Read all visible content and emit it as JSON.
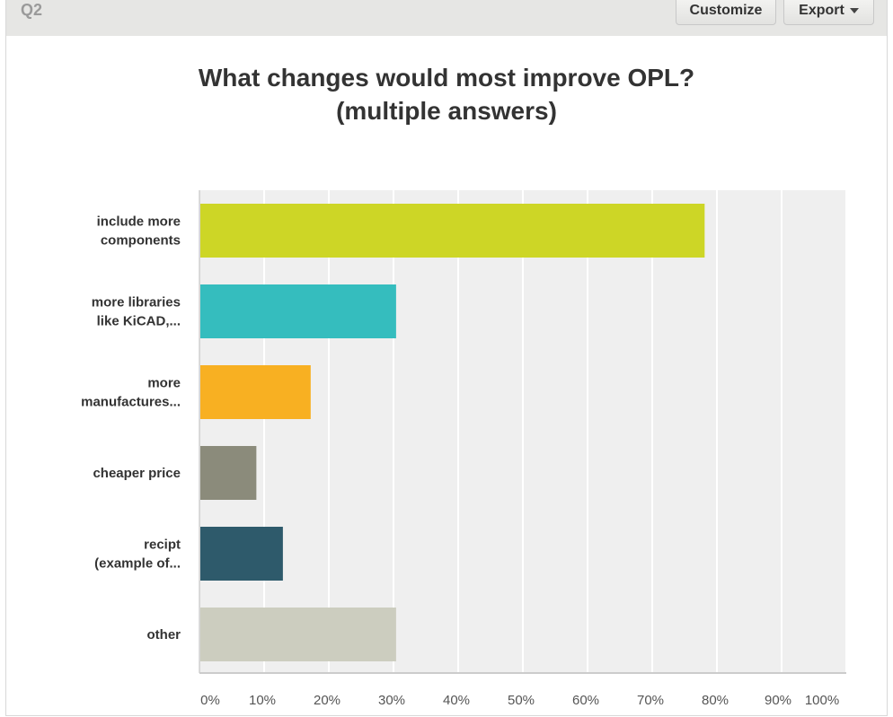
{
  "header": {
    "question_id": "Q2",
    "customize_label": "Customize",
    "export_label": "Export",
    "export_icon": "caret-down-icon"
  },
  "chart_data": {
    "type": "bar",
    "orientation": "horizontal",
    "title": "What changes would most improve OPL?",
    "subtitle": "(multiple answers)",
    "categories": [
      [
        "include more",
        "components"
      ],
      [
        "more libraries",
        "like KiCAD,..."
      ],
      [
        "more",
        "manufactures..."
      ],
      [
        "cheaper price"
      ],
      [
        "recipt",
        "(example of..."
      ],
      [
        "other"
      ]
    ],
    "values": [
      78.1,
      30.4,
      17.2,
      8.8,
      12.9,
      30.4
    ],
    "colors": [
      "#cdd626",
      "#35bdbe",
      "#f8b022",
      "#8b8b7b",
      "#2e5a6b",
      "#cccdbf"
    ],
    "xlim": [
      0,
      100
    ],
    "ticks": [
      "0%",
      "10%",
      "20%",
      "30%",
      "40%",
      "50%",
      "60%",
      "70%",
      "80%",
      "90%",
      "100%"
    ],
    "grid": true,
    "plot_background": "#efefef"
  }
}
